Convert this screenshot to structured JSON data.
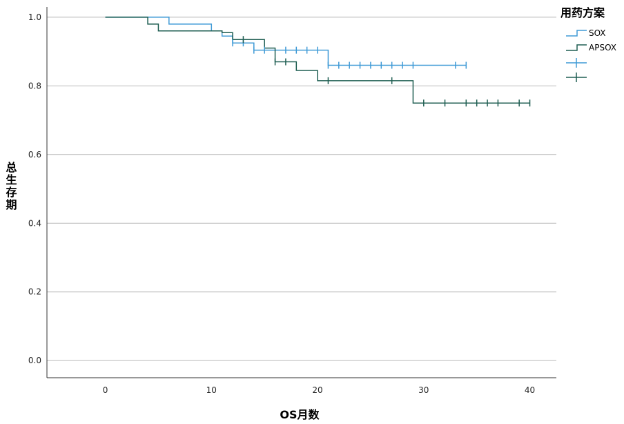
{
  "chart_data": {
    "type": "line",
    "subtype": "kaplan-meier step curve with censor marks",
    "xlabel": "OS月数",
    "ylabel": "总生存期",
    "xlim": [
      -5.5,
      42.5
    ],
    "ylim": [
      -0.05,
      1.03
    ],
    "x_ticks": [
      0,
      10,
      20,
      30,
      40
    ],
    "y_ticks": [
      0.0,
      0.2,
      0.4,
      0.6,
      0.8,
      1.0
    ],
    "y_tick_labels": [
      "0.0",
      "0.2",
      "0.4",
      "0.6",
      "0.8",
      "1.0"
    ],
    "grid": "horizontal",
    "legend": {
      "title": "用药方案",
      "placement": "top-right outside plot",
      "entries": [
        "SOX",
        "APSOX"
      ]
    },
    "series": [
      {
        "name": "SOX",
        "color": "#3f9ad6",
        "x": [
          0,
          6,
          10,
          11,
          12,
          14,
          21,
          34
        ],
        "y": [
          1.0,
          0.98,
          0.96,
          0.945,
          0.925,
          0.904,
          0.86,
          0.86
        ],
        "censored": [
          {
            "x": 12,
            "y": 0.925
          },
          {
            "x": 13,
            "y": 0.925
          },
          {
            "x": 14,
            "y": 0.904
          },
          {
            "x": 15,
            "y": 0.904
          },
          {
            "x": 17,
            "y": 0.904
          },
          {
            "x": 18,
            "y": 0.904
          },
          {
            "x": 19,
            "y": 0.904
          },
          {
            "x": 20,
            "y": 0.904
          },
          {
            "x": 21,
            "y": 0.86
          },
          {
            "x": 22,
            "y": 0.86
          },
          {
            "x": 23,
            "y": 0.86
          },
          {
            "x": 24,
            "y": 0.86
          },
          {
            "x": 25,
            "y": 0.86
          },
          {
            "x": 26,
            "y": 0.86
          },
          {
            "x": 27,
            "y": 0.86
          },
          {
            "x": 28,
            "y": 0.86
          },
          {
            "x": 29,
            "y": 0.86
          },
          {
            "x": 33,
            "y": 0.86
          },
          {
            "x": 34,
            "y": 0.86
          }
        ]
      },
      {
        "name": "APSOX",
        "color": "#1f5e52",
        "x": [
          0,
          4,
          5,
          11,
          12,
          15,
          16,
          18,
          20,
          29,
          40
        ],
        "y": [
          1.0,
          0.98,
          0.96,
          0.955,
          0.935,
          0.91,
          0.87,
          0.845,
          0.815,
          0.75,
          0.75
        ],
        "censored": [
          {
            "x": 13,
            "y": 0.935
          },
          {
            "x": 16,
            "y": 0.87
          },
          {
            "x": 17,
            "y": 0.87
          },
          {
            "x": 21,
            "y": 0.815
          },
          {
            "x": 27,
            "y": 0.815
          },
          {
            "x": 30,
            "y": 0.75
          },
          {
            "x": 32,
            "y": 0.75
          },
          {
            "x": 34,
            "y": 0.75
          },
          {
            "x": 35,
            "y": 0.75
          },
          {
            "x": 36,
            "y": 0.75
          },
          {
            "x": 37,
            "y": 0.75
          },
          {
            "x": 39,
            "y": 0.75
          },
          {
            "x": 40,
            "y": 0.75
          }
        ]
      }
    ]
  }
}
